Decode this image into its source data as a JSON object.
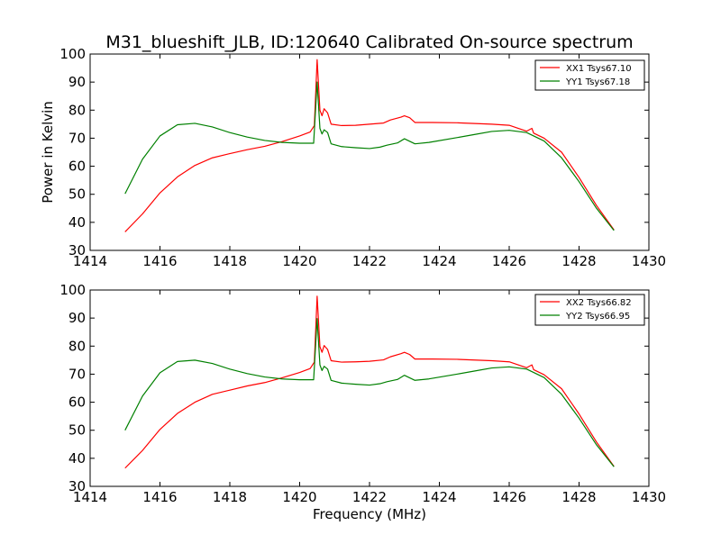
{
  "figure": {
    "title": "M31_blueshift_JLB, ID:120640 Calibrated On-source spectrum",
    "ylabel": "Power in Kelvin",
    "xlabel": "Frequency (MHz)"
  },
  "colors": {
    "red": "#ff0000",
    "green": "#008000"
  },
  "chart_data": [
    {
      "type": "line",
      "xlim": [
        1414,
        1430
      ],
      "ylim": [
        30,
        100
      ],
      "xticks": [
        1414,
        1416,
        1418,
        1420,
        1422,
        1424,
        1426,
        1428,
        1430
      ],
      "yticks": [
        30,
        40,
        50,
        60,
        70,
        80,
        90,
        100
      ],
      "legend_position": "top-right",
      "grid": false,
      "series": [
        {
          "name": "XX1 Tsys67.10",
          "color": "#ff0000",
          "points": [
            [
              1415.0,
              36.6
            ],
            [
              1415.5,
              43.0
            ],
            [
              1416.0,
              50.5
            ],
            [
              1416.5,
              56.2
            ],
            [
              1417.0,
              60.3
            ],
            [
              1417.5,
              63.0
            ],
            [
              1418.0,
              64.5
            ],
            [
              1418.5,
              65.9
            ],
            [
              1419.0,
              67.1
            ],
            [
              1419.5,
              68.8
            ],
            [
              1420.0,
              70.8
            ],
            [
              1420.3,
              72.2
            ],
            [
              1420.42,
              74.5
            ],
            [
              1420.5,
              98.0
            ],
            [
              1420.58,
              80.0
            ],
            [
              1420.64,
              78.0
            ],
            [
              1420.7,
              80.5
            ],
            [
              1420.8,
              79.0
            ],
            [
              1420.9,
              75.0
            ],
            [
              1421.2,
              74.5
            ],
            [
              1421.6,
              74.6
            ],
            [
              1422.0,
              75.0
            ],
            [
              1422.4,
              75.4
            ],
            [
              1422.6,
              76.5
            ],
            [
              1422.9,
              77.5
            ],
            [
              1423.0,
              78.0
            ],
            [
              1423.15,
              77.3
            ],
            [
              1423.3,
              75.6
            ],
            [
              1423.8,
              75.6
            ],
            [
              1424.5,
              75.5
            ],
            [
              1425.5,
              75.0
            ],
            [
              1426.0,
              74.6
            ],
            [
              1426.5,
              72.5
            ],
            [
              1426.65,
              73.5
            ],
            [
              1426.7,
              71.8
            ],
            [
              1427.0,
              70.0
            ],
            [
              1427.5,
              65.0
            ],
            [
              1428.0,
              56.0
            ],
            [
              1428.5,
              46.0
            ],
            [
              1429.0,
              37.3
            ]
          ]
        },
        {
          "name": "YY1 Tsys67.18",
          "color": "#008000",
          "points": [
            [
              1415.0,
              50.2
            ],
            [
              1415.5,
              62.5
            ],
            [
              1416.0,
              70.8
            ],
            [
              1416.5,
              74.8
            ],
            [
              1417.0,
              75.3
            ],
            [
              1417.5,
              74.0
            ],
            [
              1418.0,
              72.0
            ],
            [
              1418.5,
              70.4
            ],
            [
              1419.0,
              69.2
            ],
            [
              1419.5,
              68.5
            ],
            [
              1420.0,
              68.2
            ],
            [
              1420.4,
              68.2
            ],
            [
              1420.5,
              90.0
            ],
            [
              1420.58,
              73.5
            ],
            [
              1420.64,
              71.5
            ],
            [
              1420.7,
              73.0
            ],
            [
              1420.8,
              72.0
            ],
            [
              1420.9,
              68.0
            ],
            [
              1421.2,
              67.0
            ],
            [
              1421.6,
              66.6
            ],
            [
              1422.0,
              66.3
            ],
            [
              1422.3,
              66.8
            ],
            [
              1422.5,
              67.5
            ],
            [
              1422.8,
              68.3
            ],
            [
              1423.0,
              69.8
            ],
            [
              1423.2,
              68.6
            ],
            [
              1423.3,
              68.0
            ],
            [
              1423.7,
              68.5
            ],
            [
              1424.5,
              70.2
            ],
            [
              1425.0,
              71.3
            ],
            [
              1425.5,
              72.4
            ],
            [
              1426.0,
              72.8
            ],
            [
              1426.5,
              72.0
            ],
            [
              1427.0,
              69.0
            ],
            [
              1427.5,
              63.0
            ],
            [
              1428.0,
              54.5
            ],
            [
              1428.5,
              45.0
            ],
            [
              1429.0,
              37.1
            ]
          ]
        }
      ]
    },
    {
      "type": "line",
      "xlim": [
        1414,
        1430
      ],
      "ylim": [
        30,
        100
      ],
      "xticks": [
        1414,
        1416,
        1418,
        1420,
        1422,
        1424,
        1426,
        1428,
        1430
      ],
      "yticks": [
        30,
        40,
        50,
        60,
        70,
        80,
        90,
        100
      ],
      "legend_position": "top-right",
      "grid": false,
      "series": [
        {
          "name": "XX2 Tsys66.82",
          "color": "#ff0000",
          "points": [
            [
              1415.0,
              36.5
            ],
            [
              1415.5,
              42.8
            ],
            [
              1416.0,
              50.3
            ],
            [
              1416.5,
              56.0
            ],
            [
              1417.0,
              60.0
            ],
            [
              1417.5,
              62.8
            ],
            [
              1418.0,
              64.3
            ],
            [
              1418.5,
              65.8
            ],
            [
              1419.0,
              67.0
            ],
            [
              1419.5,
              68.7
            ],
            [
              1420.0,
              70.6
            ],
            [
              1420.3,
              72.0
            ],
            [
              1420.42,
              74.3
            ],
            [
              1420.5,
              97.8
            ],
            [
              1420.58,
              79.8
            ],
            [
              1420.64,
              77.8
            ],
            [
              1420.7,
              80.2
            ],
            [
              1420.8,
              78.8
            ],
            [
              1420.9,
              74.8
            ],
            [
              1421.2,
              74.3
            ],
            [
              1421.6,
              74.4
            ],
            [
              1422.0,
              74.6
            ],
            [
              1422.4,
              75.1
            ],
            [
              1422.6,
              76.2
            ],
            [
              1422.9,
              77.3
            ],
            [
              1423.0,
              77.8
            ],
            [
              1423.15,
              77.0
            ],
            [
              1423.3,
              75.4
            ],
            [
              1423.8,
              75.4
            ],
            [
              1424.5,
              75.3
            ],
            [
              1425.5,
              74.8
            ],
            [
              1426.0,
              74.4
            ],
            [
              1426.5,
              72.3
            ],
            [
              1426.65,
              73.3
            ],
            [
              1426.7,
              71.6
            ],
            [
              1427.0,
              69.8
            ],
            [
              1427.5,
              64.8
            ],
            [
              1428.0,
              55.8
            ],
            [
              1428.5,
              45.8
            ],
            [
              1429.0,
              37.1
            ]
          ]
        },
        {
          "name": "YY2 Tsys66.95",
          "color": "#008000",
          "points": [
            [
              1415.0,
              50.0
            ],
            [
              1415.5,
              62.2
            ],
            [
              1416.0,
              70.5
            ],
            [
              1416.5,
              74.5
            ],
            [
              1417.0,
              75.0
            ],
            [
              1417.5,
              73.8
            ],
            [
              1418.0,
              71.8
            ],
            [
              1418.5,
              70.2
            ],
            [
              1419.0,
              69.0
            ],
            [
              1419.5,
              68.3
            ],
            [
              1420.0,
              68.0
            ],
            [
              1420.4,
              68.0
            ],
            [
              1420.5,
              89.8
            ],
            [
              1420.58,
              73.3
            ],
            [
              1420.64,
              71.3
            ],
            [
              1420.7,
              72.8
            ],
            [
              1420.8,
              71.8
            ],
            [
              1420.9,
              67.8
            ],
            [
              1421.2,
              66.8
            ],
            [
              1421.6,
              66.4
            ],
            [
              1422.0,
              66.1
            ],
            [
              1422.3,
              66.6
            ],
            [
              1422.5,
              67.3
            ],
            [
              1422.8,
              68.1
            ],
            [
              1423.0,
              69.6
            ],
            [
              1423.2,
              68.4
            ],
            [
              1423.3,
              67.8
            ],
            [
              1423.7,
              68.3
            ],
            [
              1424.5,
              70.0
            ],
            [
              1425.0,
              71.1
            ],
            [
              1425.5,
              72.2
            ],
            [
              1426.0,
              72.6
            ],
            [
              1426.5,
              71.8
            ],
            [
              1427.0,
              68.8
            ],
            [
              1427.5,
              62.8
            ],
            [
              1428.0,
              54.3
            ],
            [
              1428.5,
              44.8
            ],
            [
              1429.0,
              37.0
            ]
          ]
        }
      ]
    }
  ]
}
